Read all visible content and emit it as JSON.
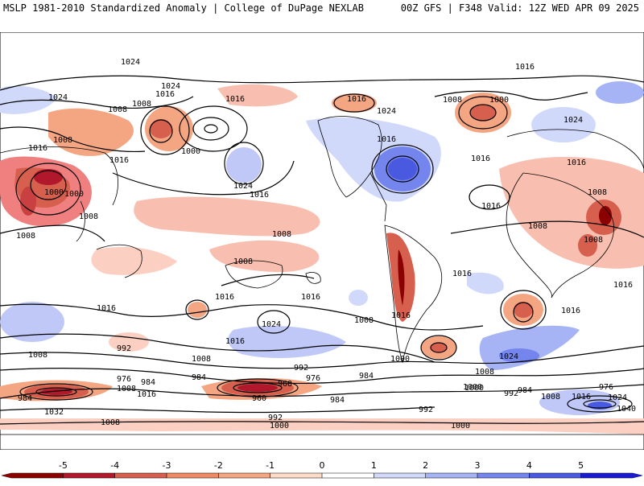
{
  "header": {
    "title_left": "MSLP 1981-2010 Standardized Anomaly | College of DuPage NEXLAB",
    "title_right": "00Z GFS | F348 Valid: 12Z WED APR 09 2025"
  },
  "contour_labels": [
    "1024",
    "1016",
    "1024",
    "1016",
    "1008",
    "1008",
    "1016",
    "1024",
    "1008",
    "1000",
    "1016",
    "1016",
    "1024",
    "1016",
    "1016",
    "1024",
    "1000",
    "1016",
    "1024",
    "1016",
    "1008",
    "1008",
    "1000",
    "1000",
    "1008",
    "1016",
    "1016",
    "1008",
    "1008",
    "1008",
    "1016",
    "1008",
    "1016",
    "1008",
    "1016",
    "1016",
    "1016",
    "1016",
    "1016",
    "1024",
    "1008",
    "1024",
    "1008",
    "992",
    "1008",
    "1000",
    "1016",
    "992",
    "976",
    "984",
    "984",
    "968",
    "976",
    "984",
    "960",
    "984",
    "992",
    "1000",
    "1000",
    "1008",
    "1032",
    "984",
    "1008",
    "1000",
    "992",
    "1008",
    "1016",
    "1024",
    "984",
    "976",
    "1040",
    "1008",
    "1016",
    "1000",
    "992"
  ],
  "colorbar": {
    "ticks": [
      "-5",
      "-4",
      "-3",
      "-2",
      "-1",
      "0",
      "1",
      "2",
      "3",
      "4",
      "5"
    ],
    "colors": [
      "#8b0000",
      "#b2182b",
      "#d6604d",
      "#ef8a62",
      "#f4a582",
      "#fddbc7",
      "#ffffff",
      "#d1d9fb",
      "#a6b4f5",
      "#7486ee",
      "#4a5ae0",
      "#1a1ad0"
    ]
  }
}
